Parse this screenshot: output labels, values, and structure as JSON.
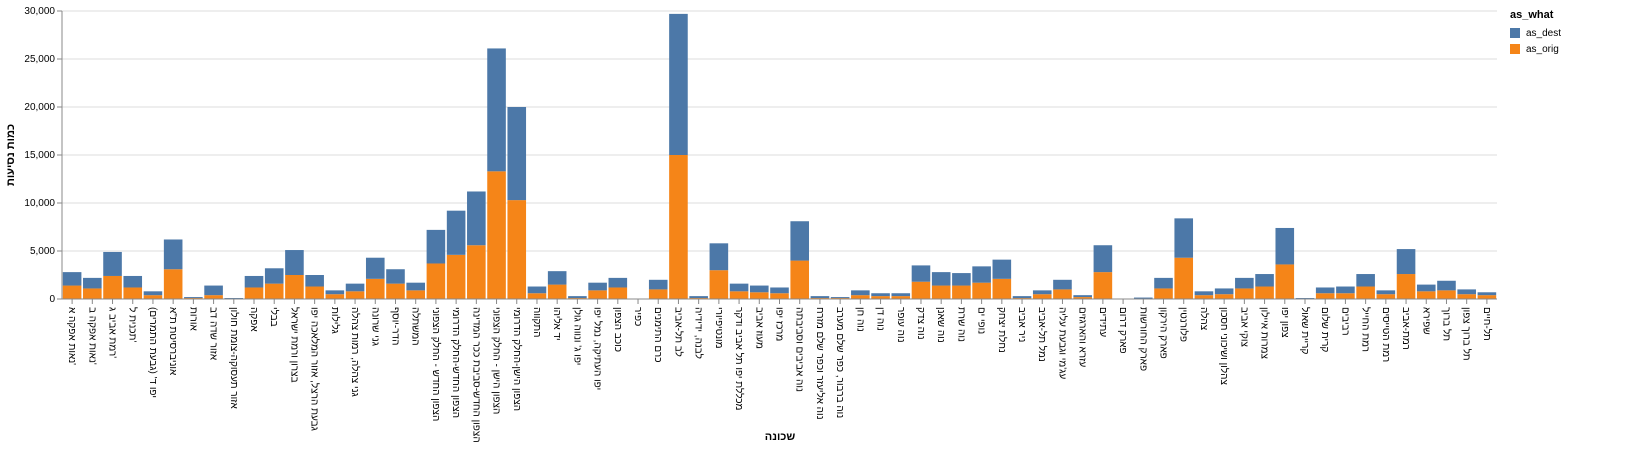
{
  "chart_data": {
    "type": "stacked_bar",
    "x_label": "שכונה",
    "y_label": "כמות נסיעות",
    "legend_title": "as_what",
    "legend_position": "right",
    "grid": true,
    "categories": [
      "נאות אפקה א'",
      "נאות אפקה ב'",
      "רמת אביב ג'",
      "תכנית ל'",
      "יפו ד' (גבעת התמרים)",
      "אוניברסיטת ת\"א",
      "אורות",
      "אזור שדה דב",
      "אזור תעסוקה-צומת חולון",
      "אפקה",
      "בבלי",
      "בצרון ורמת ישראל",
      "גבעת הרצל, אזור המלאכה יפו",
      "גלילות",
      "גני צהלה, רמות צהלה",
      "גני שרונה",
      "הדר-יוסף",
      "המשתלה",
      "הצפון החדש - החלק הצפוני",
      "הצפון החדש-החלק הדרומי",
      "הצפון החדש-סביבת ככר המדינה",
      "הצפון הישן - החלק הצפוני",
      "הצפון הישן-החלק הדרומי",
      "התקווה",
      "יד אליהו",
      "יפו ג' ונווה גולן",
      "יפו העתיקה, נמל יפו",
      "כוכב הצפון",
      "כפיר",
      "כרם התימנים",
      "לב תל-אביב",
      "לבנה, ידידיה",
      "מונטיפיורי",
      "מכללת יפו תל אביב ודקר",
      "מעוז אביב",
      "מרכז יפו",
      "נוה אביבים וסביבתה",
      "נוה אליעזר וכפר שלם מזרח",
      "נוה ברבור, כפר שלם מערב",
      "נוה חן",
      "נוה דן",
      "נוה עופר",
      "נוה צדק",
      "נוה שאנן",
      "נוה שרת",
      "נופי ים",
      "נחלת יצחק",
      "ניר אביב",
      "נמל תל-אביב",
      "עג'מי וגבעת עליה",
      "עזרא והארגזים",
      "עתידים",
      "פארק דרום",
      "פארק החורשות",
      "פארק הירקון",
      "פלורנטין",
      "צהלה",
      "צהלון ושיכוני חסכון",
      "צוקי אביב",
      "צמרות איילון",
      "צפון יפו",
      "קריית שאול",
      "קרית שלום",
      "רביבים",
      "רמת החייל",
      "רמת הטייסים",
      "רמת-אביב",
      "שפירא",
      "תל ברוך",
      "תל ברוך צפון",
      "תל-חיים"
    ],
    "series": [
      {
        "name": "as_orig",
        "color": "#f58518",
        "values": [
          1400,
          1100,
          2400,
          1200,
          400,
          3100,
          100,
          400,
          50,
          1200,
          1600,
          2500,
          1300,
          500,
          800,
          2100,
          1600,
          900,
          3700,
          4600,
          5600,
          13300,
          10300,
          600,
          1500,
          100,
          900,
          1200,
          20,
          1000,
          15000,
          100,
          3000,
          800,
          700,
          600,
          4000,
          100,
          100,
          400,
          300,
          300,
          1800,
          1400,
          1400,
          1700,
          2100,
          100,
          500,
          1000,
          200,
          2800,
          10,
          50,
          1100,
          4300,
          400,
          500,
          1100,
          1300,
          3600,
          50,
          600,
          600,
          1300,
          500,
          2600,
          800,
          900,
          500,
          400
        ]
      },
      {
        "name": "as_dest",
        "color": "#4c78a8",
        "values": [
          1400,
          1100,
          2500,
          1200,
          400,
          3100,
          100,
          1000,
          50,
          1200,
          1600,
          2600,
          1200,
          400,
          800,
          2200,
          1500,
          800,
          3500,
          4600,
          5600,
          12800,
          9700,
          700,
          1400,
          200,
          800,
          1000,
          30,
          1000,
          14700,
          200,
          2800,
          800,
          700,
          600,
          4100,
          200,
          100,
          500,
          300,
          300,
          1700,
          1400,
          1300,
          1700,
          2000,
          200,
          400,
          1000,
          200,
          2800,
          10,
          100,
          1100,
          4100,
          400,
          600,
          1100,
          1300,
          3800,
          50,
          600,
          700,
          1300,
          400,
          2600,
          700,
          1000,
          500,
          300
        ]
      }
    ],
    "ylim": [
      0,
      30000
    ],
    "yticks": [
      0,
      {
        "value": 5000,
        "label": "5,000"
      },
      {
        "value": 10000,
        "label": "10,000"
      },
      {
        "value": 15000,
        "label": "15,000"
      },
      {
        "value": 20000,
        "label": "20,000"
      },
      {
        "value": 25000,
        "label": "25,000"
      },
      {
        "value": 30000,
        "label": "30,000"
      }
    ]
  }
}
